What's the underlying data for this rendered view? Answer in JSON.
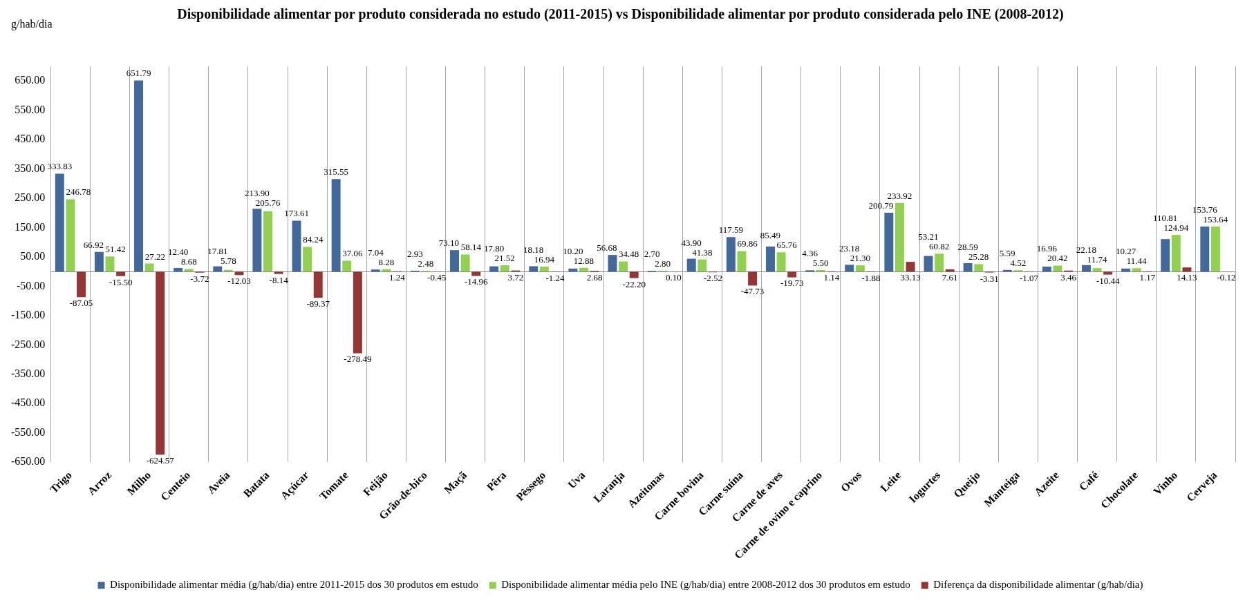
{
  "chart_data": {
    "type": "bar",
    "title": "Disponibilidade alimentar por produto considerada no estudo (2011-2015) vs Disponibilidade alimentar por produto considerada pelo INE (2008-2012)",
    "ylabel": "g/hab/dia",
    "categories": [
      "Trigo",
      "Arroz",
      "Milho",
      "Centeio",
      "Aveia",
      "Batata",
      "Açúcar",
      "Tomate",
      "Feijão",
      "Grão-de-bico",
      "Maçã",
      "Pêra",
      "Pêssego",
      "Uva",
      "Laranja",
      "Azeitonas",
      "Carne bovina",
      "Carne suína",
      "Carne de aves",
      "Carne de ovino e caprino",
      "Ovos",
      "Leite",
      "Iogurtes",
      "Queijo",
      "Manteiga",
      "Azeite",
      "Café",
      "Chocolate",
      "Vinho",
      "Cerveja"
    ],
    "series": [
      {
        "name": "Disponibilidade alimentar média (g/hab/dia) entre 2011-2015 dos 30 produtos em estudo",
        "color": "#41699c",
        "values": [
          333.83,
          66.92,
          651.79,
          12.4,
          17.81,
          213.9,
          173.61,
          315.55,
          7.04,
          2.93,
          73.1,
          17.8,
          18.18,
          10.2,
          56.68,
          2.7,
          43.9,
          117.59,
          85.49,
          4.36,
          23.18,
          200.79,
          53.21,
          28.59,
          5.59,
          16.96,
          22.18,
          10.27,
          110.81,
          153.76
        ],
        "value_labels": [
          "333.83",
          "66.92",
          "651.79",
          "12.40",
          "17.81",
          "213.90",
          "173.61",
          "315.55",
          "7.04",
          "2.93",
          "73.10",
          "17.80",
          "18.18",
          "10.20",
          "56.68",
          "2.70",
          "43.90",
          "117.59",
          "85.49",
          "4.36",
          "23.18",
          "200.79",
          "53.21",
          "28.59",
          "5.59",
          "16.96",
          "22.18",
          "10.27",
          "110.81",
          "153.76"
        ]
      },
      {
        "name": "Disponibilidade alimentar média pelo INE (g/hab/dia) entre 2008-2012 dos 30 produtos em estudo",
        "color": "#92d050",
        "values": [
          246.78,
          51.42,
          27.22,
          8.68,
          5.78,
          205.76,
          84.24,
          37.06,
          8.28,
          2.48,
          58.14,
          21.52,
          16.94,
          12.88,
          34.48,
          2.8,
          41.38,
          69.86,
          65.76,
          5.5,
          21.3,
          233.92,
          60.82,
          25.28,
          4.52,
          20.42,
          11.74,
          11.44,
          124.94,
          153.64
        ],
        "value_labels": [
          "246.78",
          "51.42",
          "27.22",
          "8.68",
          "5.78",
          "205.76",
          "84.24",
          "37.06",
          "8.28",
          "2.48",
          "58.14",
          "21.52",
          "16.94",
          "12.88",
          "34.48",
          "2.80",
          "41.38",
          "69.86",
          "65.76",
          "5.50",
          "21.30",
          "233.92",
          "60.82",
          "25.28",
          "4.52",
          "20.42",
          "11.74",
          "11.44",
          "124.94",
          "153.64"
        ]
      },
      {
        "name": "Diferença da disponibilidade alimentar (g/hab/dia)",
        "color": "#963634",
        "values": [
          -87.05,
          -15.5,
          -624.57,
          -3.72,
          -12.03,
          -8.14,
          -89.37,
          -278.49,
          1.24,
          -0.45,
          -14.96,
          3.72,
          -1.24,
          2.68,
          -22.2,
          0.1,
          -2.52,
          -47.73,
          -19.73,
          1.14,
          -1.88,
          33.13,
          7.61,
          -3.31,
          -1.07,
          3.46,
          -10.44,
          1.17,
          14.13,
          -0.12
        ],
        "value_labels": [
          "-87.05",
          "-15.50",
          "-624.57",
          "-3.72",
          "-12.03",
          "-8.14",
          "-89.37",
          "-278.49",
          "1.24",
          "-0.45",
          "-14.96",
          "3.72",
          "-1.24",
          "2.68",
          "-22.20",
          "0.10",
          "-2.52",
          "-47.73",
          "-19.73",
          "1.14",
          "-1.88",
          "33.13",
          "7.61",
          "-3.31",
          "-1.07",
          "3.46",
          "-10.44",
          "1.17",
          "14.13",
          "-0.12"
        ]
      }
    ],
    "ylim": [
      -650,
      700
    ],
    "yticks": [
      {
        "value": -650,
        "label": "-650.00"
      },
      {
        "value": -550,
        "label": "-550.00"
      },
      {
        "value": -450,
        "label": "-450.00"
      },
      {
        "value": -350,
        "label": "-350.00"
      },
      {
        "value": -250,
        "label": "-250.00"
      },
      {
        "value": -150,
        "label": "-150.00"
      },
      {
        "value": -50,
        "label": "-50.00"
      },
      {
        "value": 50,
        "label": "50.00"
      },
      {
        "value": 150,
        "label": "150.00"
      },
      {
        "value": 250,
        "label": "250.00"
      },
      {
        "value": 350,
        "label": "350.00"
      },
      {
        "value": 450,
        "label": "450.00"
      },
      {
        "value": 550,
        "label": "550.00"
      },
      {
        "value": 650,
        "label": "650.00"
      }
    ],
    "grid": "x",
    "legend": "bottom"
  }
}
